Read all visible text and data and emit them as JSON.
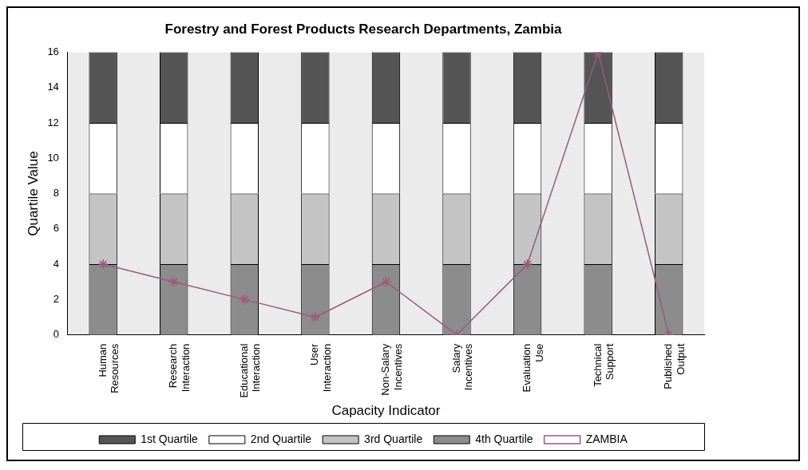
{
  "chart_data": {
    "type": "bar",
    "title": "Forestry and Forest Products Research Departments, Zambia",
    "xlabel": "Capacity Indicator",
    "ylabel": "Quartile Value",
    "categories": [
      "Human Resources",
      "Research Interaction",
      "Educational Interaction",
      "User Interaction",
      "Non-Salary Incentives",
      "Salary Incentives",
      "Evaluation Use",
      "Technical Support",
      "Published Output"
    ],
    "stacked": true,
    "ylim": [
      0,
      16
    ],
    "yticks": [
      0,
      2,
      4,
      6,
      8,
      10,
      12,
      14,
      16
    ],
    "grid": false,
    "legend": "bottom",
    "series": [
      {
        "name": "4th Quartile",
        "color": "#8c8c8c",
        "values": [
          4,
          4,
          4,
          4,
          4,
          4,
          4,
          4,
          4
        ]
      },
      {
        "name": "3rd Quartile",
        "color": "#c4c4c4",
        "values": [
          4,
          4,
          4,
          4,
          4,
          4,
          4,
          4,
          4
        ]
      },
      {
        "name": "2nd Quartile",
        "color": "#ffffff",
        "values": [
          4,
          4,
          4,
          4,
          4,
          4,
          4,
          4,
          4
        ]
      },
      {
        "name": "1st Quartile",
        "color": "#555555",
        "values": [
          4,
          4,
          4,
          4,
          4,
          4,
          4,
          4,
          4
        ]
      },
      {
        "name": "ZAMBIA",
        "type": "line",
        "color": "#9c5a78",
        "marker": "cross",
        "values": [
          4,
          3,
          2,
          1,
          3,
          0,
          4,
          16,
          0
        ]
      }
    ]
  }
}
